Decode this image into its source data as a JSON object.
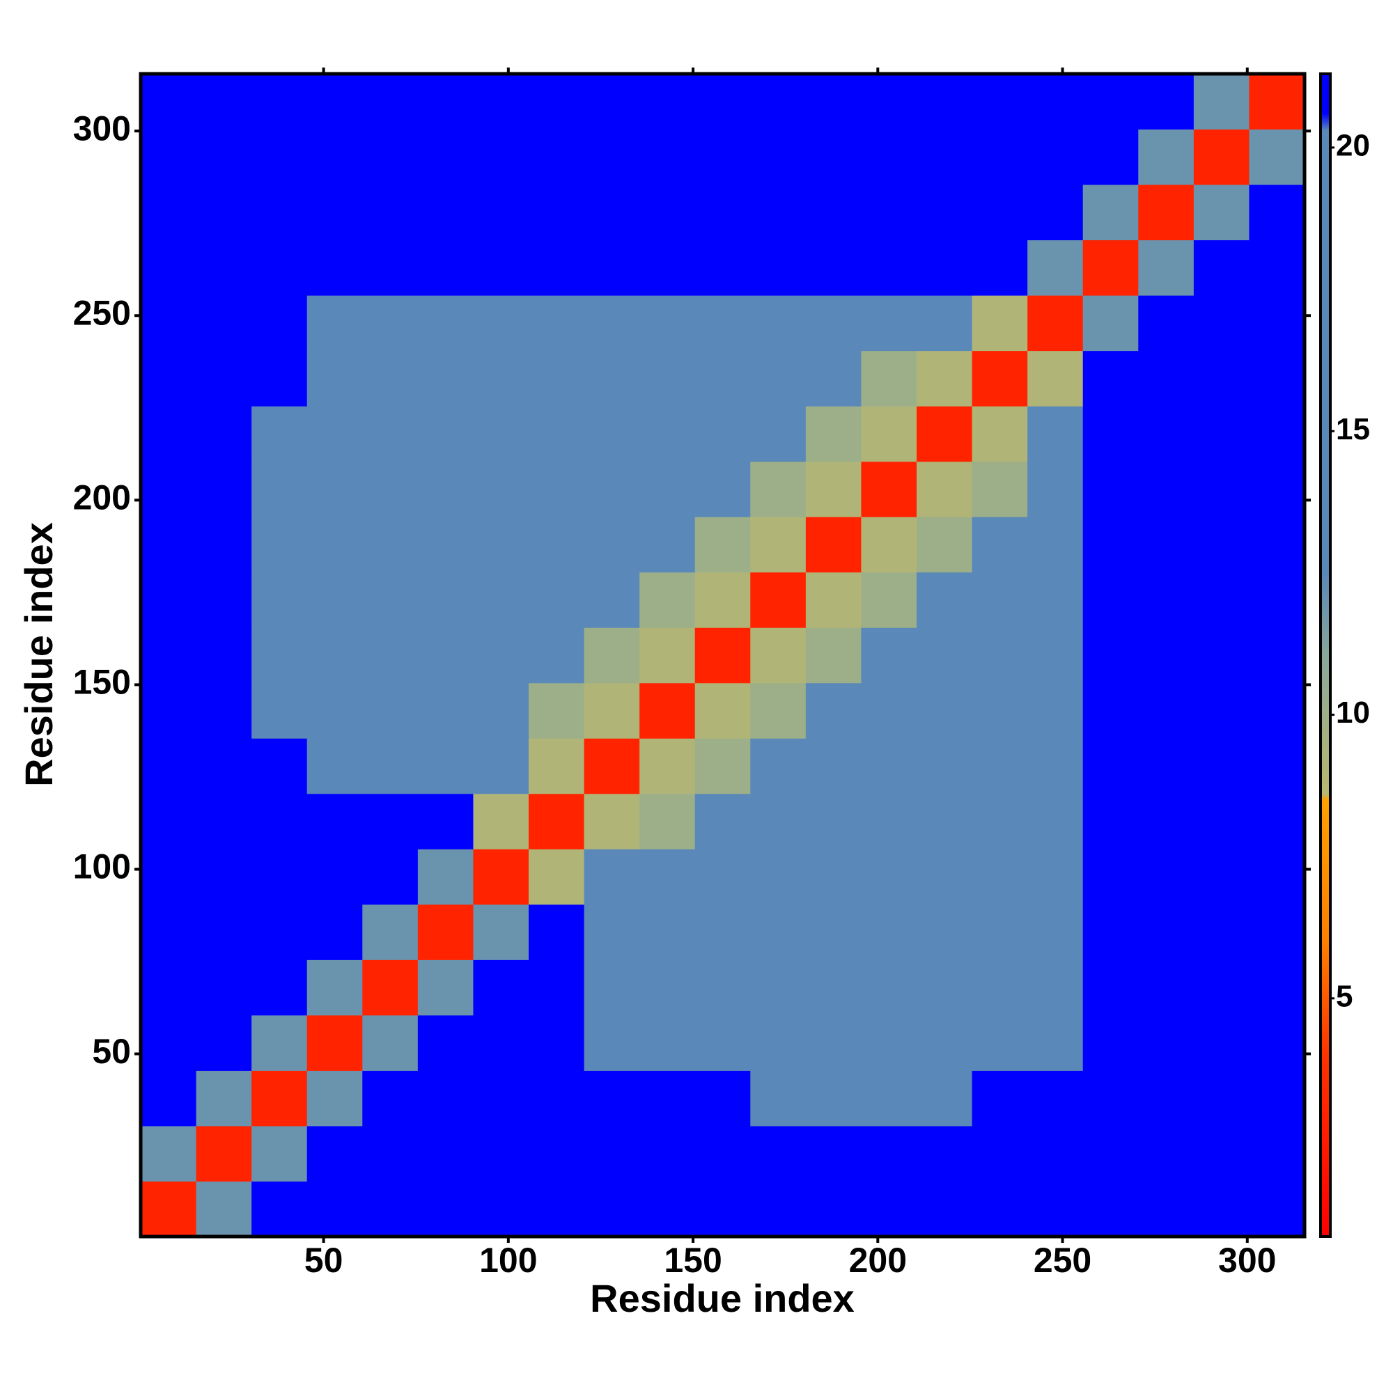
{
  "chart_data": {
    "type": "heatmap",
    "xlabel": "Residue index",
    "ylabel": "Residue index",
    "x": [
      8,
      23,
      38,
      53,
      68,
      83,
      98,
      113,
      128,
      143,
      158,
      173,
      188,
      203,
      218,
      233,
      248,
      263,
      278,
      293,
      308
    ],
    "y": [
      8,
      23,
      38,
      53,
      68,
      83,
      98,
      113,
      128,
      143,
      158,
      173,
      188,
      203,
      218,
      233,
      248,
      263,
      278,
      293,
      308
    ],
    "z": [
      [
        3,
        12,
        21,
        21,
        21,
        21,
        21,
        21,
        21,
        21,
        21,
        21,
        21,
        21,
        21,
        21,
        21,
        21,
        21,
        21,
        21
      ],
      [
        12,
        3,
        12,
        21,
        21,
        21,
        21,
        21,
        21,
        21,
        21,
        21,
        21,
        21,
        21,
        21,
        21,
        21,
        21,
        21,
        21
      ],
      [
        21,
        12,
        3,
        12,
        21,
        21,
        21,
        21,
        21,
        21,
        21,
        19,
        19,
        19,
        19,
        21,
        21,
        21,
        21,
        21,
        21
      ],
      [
        21,
        21,
        12,
        3,
        12,
        21,
        21,
        21,
        16,
        16,
        16,
        16,
        16,
        16,
        16,
        16,
        16,
        21,
        21,
        21,
        21
      ],
      [
        21,
        21,
        21,
        12,
        3,
        12,
        21,
        21,
        16,
        16,
        16,
        16,
        16,
        16,
        16,
        16,
        16,
        21,
        21,
        21,
        21
      ],
      [
        21,
        21,
        21,
        21,
        12,
        3,
        12,
        21,
        16,
        16,
        16,
        16,
        16,
        16,
        16,
        16,
        16,
        21,
        21,
        21,
        21
      ],
      [
        21,
        21,
        21,
        21,
        21,
        12,
        3,
        9,
        16,
        16,
        16,
        16,
        16,
        16,
        16,
        16,
        16,
        21,
        21,
        21,
        21
      ],
      [
        21,
        21,
        21,
        21,
        21,
        21,
        9,
        3,
        9,
        10,
        13,
        13,
        13,
        13,
        13,
        13,
        16,
        21,
        21,
        21,
        21
      ],
      [
        21,
        21,
        21,
        16,
        16,
        16,
        16,
        9,
        3,
        9,
        10,
        13,
        13,
        13,
        13,
        13,
        16,
        21,
        21,
        21,
        21
      ],
      [
        21,
        21,
        19,
        16,
        16,
        16,
        16,
        10,
        9,
        3,
        9,
        10,
        13,
        13,
        13,
        13,
        16,
        21,
        21,
        21,
        21
      ],
      [
        21,
        21,
        19,
        16,
        16,
        16,
        16,
        13,
        10,
        9,
        3,
        9,
        10,
        13,
        13,
        13,
        16,
        21,
        21,
        21,
        21
      ],
      [
        21,
        21,
        19,
        16,
        16,
        16,
        16,
        13,
        13,
        10,
        9,
        3,
        9,
        10,
        13,
        13,
        16,
        21,
        21,
        21,
        21
      ],
      [
        21,
        21,
        19,
        16,
        16,
        16,
        16,
        13,
        13,
        13,
        10,
        9,
        3,
        9,
        10,
        13,
        16,
        21,
        21,
        21,
        21
      ],
      [
        21,
        21,
        19,
        16,
        16,
        16,
        16,
        13,
        13,
        13,
        13,
        10,
        9,
        3,
        9,
        10,
        16,
        21,
        21,
        21,
        21
      ],
      [
        21,
        21,
        19,
        16,
        16,
        16,
        16,
        13,
        13,
        13,
        13,
        13,
        10,
        9,
        3,
        9,
        16,
        21,
        21,
        21,
        21
      ],
      [
        21,
        21,
        21,
        16,
        16,
        16,
        16,
        13,
        13,
        13,
        13,
        13,
        13,
        10,
        9,
        3,
        9,
        21,
        21,
        21,
        21
      ],
      [
        21,
        21,
        21,
        16,
        16,
        16,
        16,
        16,
        16,
        16,
        16,
        16,
        16,
        16,
        16,
        9,
        3,
        12,
        21,
        21,
        21
      ],
      [
        21,
        21,
        21,
        21,
        21,
        21,
        21,
        21,
        21,
        21,
        21,
        21,
        21,
        21,
        21,
        21,
        12,
        3,
        12,
        21,
        21
      ],
      [
        21,
        21,
        21,
        21,
        21,
        21,
        21,
        21,
        21,
        21,
        21,
        21,
        21,
        21,
        21,
        21,
        21,
        12,
        3,
        12,
        21
      ],
      [
        21,
        21,
        21,
        21,
        21,
        21,
        21,
        21,
        21,
        21,
        21,
        21,
        21,
        21,
        21,
        21,
        21,
        21,
        12,
        3,
        12
      ],
      [
        21,
        21,
        21,
        21,
        21,
        21,
        21,
        21,
        21,
        21,
        21,
        21,
        21,
        21,
        21,
        21,
        21,
        21,
        21,
        12,
        3
      ]
    ],
    "xlim": [
      0.5,
      315.5
    ],
    "ylim": [
      0.5,
      315.5
    ],
    "xticks": [
      50,
      100,
      150,
      200,
      250,
      300
    ],
    "yticks": [
      50,
      100,
      150,
      200,
      250,
      300
    ],
    "clim": [
      0.8,
      21.3
    ],
    "cticks": [
      5,
      10,
      15,
      20
    ],
    "colorscale": [
      [
        0.8,
        "#ff0000"
      ],
      [
        4,
        "#ff3300"
      ],
      [
        6,
        "#ff8000"
      ],
      [
        8.5,
        "#ffa000"
      ],
      [
        8.6,
        "#b8b870"
      ],
      [
        11,
        "#8aa89a"
      ],
      [
        12.5,
        "#5a88b8"
      ],
      [
        20.3,
        "#5a88b8"
      ],
      [
        20.6,
        "#0000ff"
      ],
      [
        21.3,
        "#0000ff"
      ]
    ]
  }
}
